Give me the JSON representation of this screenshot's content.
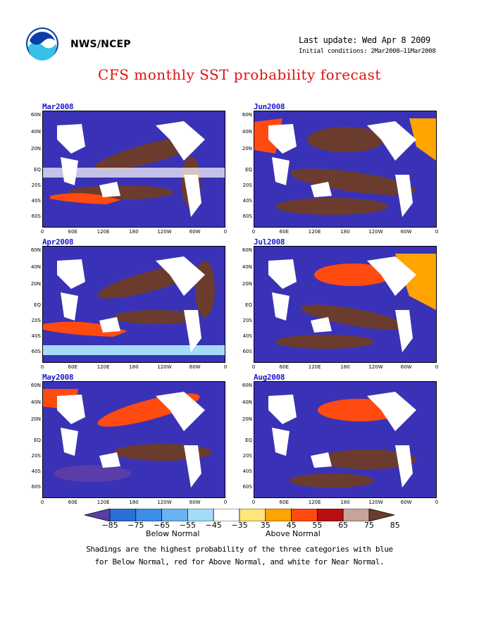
{
  "header": {
    "org": "NWS/NCEP",
    "last_update": "Last update: Wed Apr 8 2009",
    "initial_conditions": "Initial conditions: 2Mar2008–11Mar2008",
    "title": "CFS monthly SST probability forecast"
  },
  "logo": {
    "icon": "noaa-logo-icon"
  },
  "panels": [
    {
      "label": "Mar2008"
    },
    {
      "label": "Jun2008"
    },
    {
      "label": "Apr2008"
    },
    {
      "label": "Jul2008"
    },
    {
      "label": "May2008"
    },
    {
      "label": "Aug2008"
    }
  ],
  "axes": {
    "lat_ticks": [
      "60N",
      "40N",
      "20N",
      "EQ",
      "20S",
      "40S",
      "60S"
    ],
    "lon_ticks": [
      "0",
      "60E",
      "120E",
      "180",
      "120W",
      "60W",
      "0"
    ]
  },
  "colorbar": {
    "labels": [
      "−85",
      "−75",
      "−65",
      "−55",
      "−45",
      "−35",
      "35",
      "45",
      "55",
      "65",
      "75",
      "85"
    ],
    "colors": [
      "#5a3da8",
      "#2a6fd8",
      "#3e8ee8",
      "#6ab3f2",
      "#a4dcf8",
      "#ffffff",
      "#ffe57a",
      "#ffa400",
      "#ff4b10",
      "#b80f0f",
      "#c8a39b",
      "#6b3c2e"
    ],
    "below_label": "Below Normal",
    "above_label": "Above Normal"
  },
  "note": {
    "line1": "Shadings are the highest probability of the three categories with blue",
    "line2": "for Below Normal, red for Above Normal, and white for Near Normal."
  }
}
